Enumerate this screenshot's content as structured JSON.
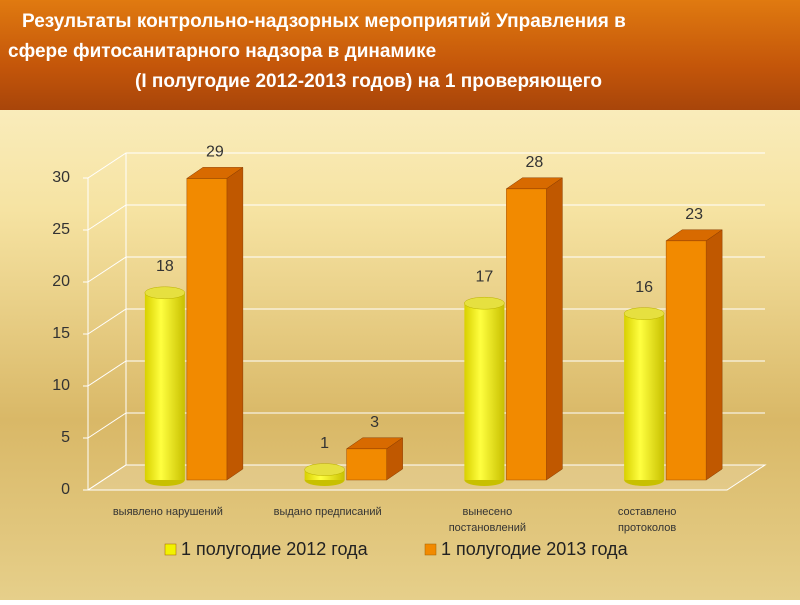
{
  "chart_data": {
    "type": "bar3d",
    "title": [
      "Результаты контрольно-надзорных мероприятий Управления в",
      "сфере фитосанитарного надзора в динамике",
      "(I полугодие 2012-2013 годов) на 1 проверяющего"
    ],
    "categories": [
      [
        "выявлено нарушений"
      ],
      [
        "выдано предписаний"
      ],
      [
        "вынесено",
        "постановлений"
      ],
      [
        "составлено",
        "протоколов"
      ]
    ],
    "series": [
      {
        "name": "1 полугодие 2012 года",
        "color": "#f2f200",
        "shape": "cylinder",
        "values": [
          18,
          1,
          17,
          16
        ]
      },
      {
        "name": "1 полугодие 2013 года",
        "color": "#f28a00",
        "shape": "box",
        "values": [
          29,
          3,
          28,
          23
        ]
      }
    ],
    "ylim": [
      0,
      30
    ],
    "yticks": [
      0,
      5,
      10,
      15,
      20,
      25,
      30
    ],
    "grid": true,
    "legend": "bottom"
  }
}
